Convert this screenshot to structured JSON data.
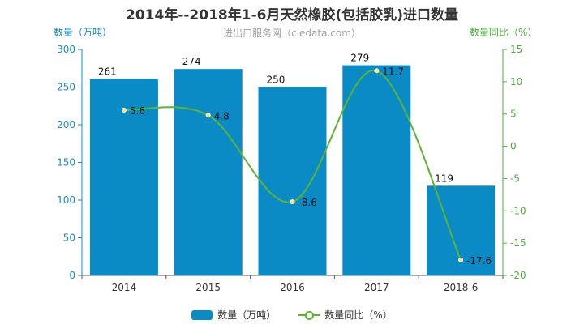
{
  "header": {
    "title": "2014年--2018年1-6月天然橡胶(包括胶乳)进口数量",
    "subtitle": "进出口服务网（ciedata.com）"
  },
  "axes": {
    "left_title": "数量（万吨）",
    "right_title": "数量同比（%）"
  },
  "legend": {
    "bar_label": "数量（万吨）",
    "line_label": "数量同比（%）"
  },
  "colors": {
    "bar": "#0a8bc6",
    "line": "#5cb531",
    "left_axis": "#1a8ac8",
    "right_axis": "#4caf3a"
  },
  "chart_data": {
    "type": "bar",
    "title": "2014年--2018年1-6月天然橡胶(包括胶乳)进口数量",
    "categories": [
      "2014",
      "2015",
      "2016",
      "2017",
      "2018-6"
    ],
    "series": [
      {
        "name": "数量（万吨）",
        "type": "bar",
        "axis": "left",
        "values": [
          261,
          274,
          250,
          279,
          119
        ]
      },
      {
        "name": "数量同比（%）",
        "type": "line",
        "axis": "right",
        "values": [
          5.6,
          4.8,
          -8.6,
          11.7,
          -17.6
        ]
      }
    ],
    "ylabel": "数量（万吨）",
    "ylim": [
      0,
      300
    ],
    "yticks": [
      0,
      50,
      100,
      150,
      200,
      250,
      300
    ],
    "y2label": "数量同比（%）",
    "y2lim": [
      -20,
      15
    ],
    "y2ticks": [
      -20,
      -15,
      -10,
      -5,
      0,
      5,
      10,
      15
    ],
    "legend_position": "bottom",
    "grid": false
  }
}
